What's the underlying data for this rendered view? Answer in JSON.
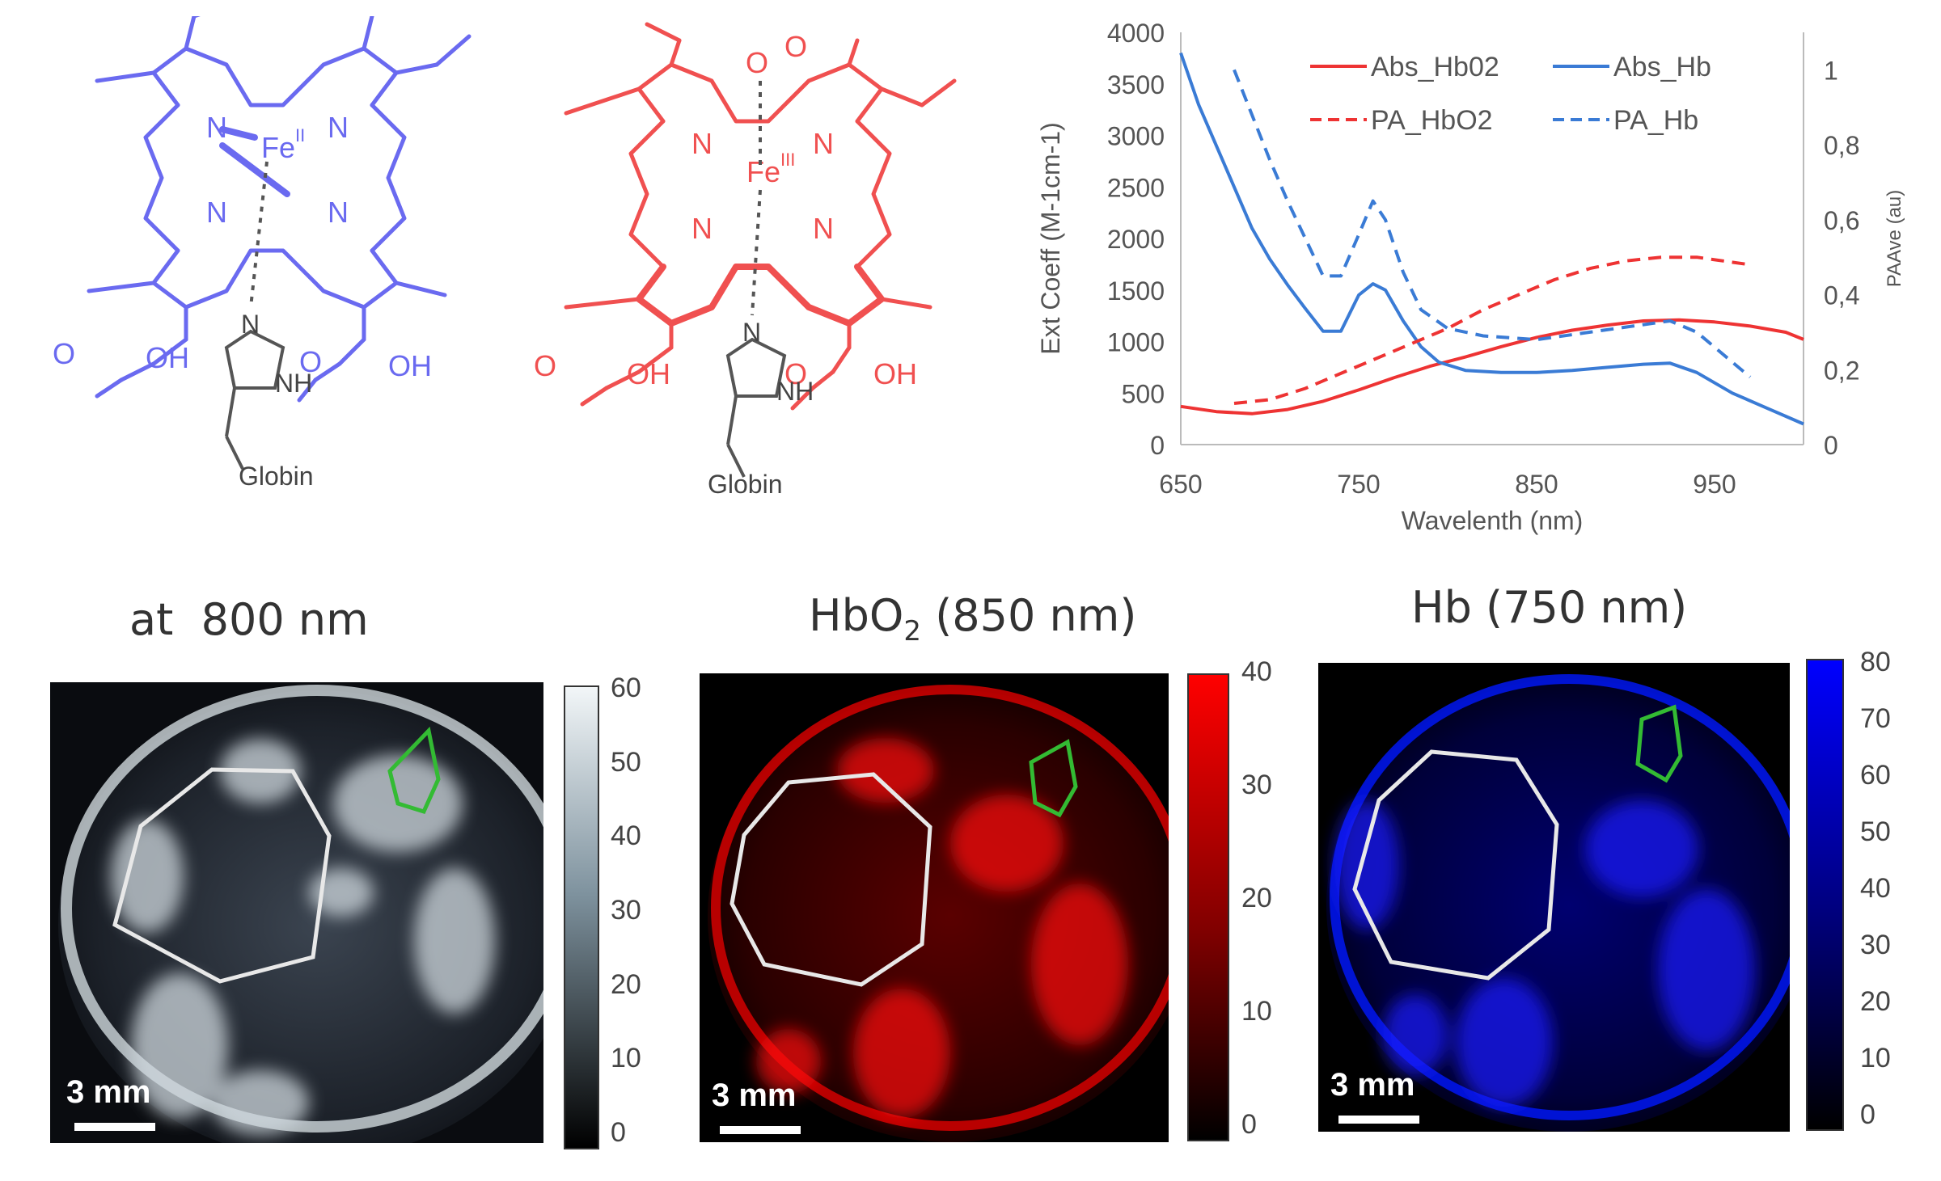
{
  "structures": {
    "left": {
      "fe_label": "Fe",
      "fe_sup": "II",
      "n_label": "N",
      "acid_label": "OH",
      "o_label": "O",
      "nh_label": "NH",
      "globin_label": "Globin",
      "color": "#6a6af0"
    },
    "right": {
      "fe_label": "Fe",
      "fe_sup": "III",
      "n_label": "N",
      "acid_label": "OH",
      "o_label": "O",
      "nh_label": "NH",
      "globin_label": "Globin",
      "color": "#f05050"
    }
  },
  "chart_data": {
    "type": "line",
    "xlabel": "Wavelenth (nm)",
    "ylabel": "Ext Coeff (M-1cm-1)",
    "y2label": "PAAve (au)",
    "xlim": [
      650,
      1000
    ],
    "ylim": [
      0,
      4000
    ],
    "y2lim": [
      0,
      1.1
    ],
    "x_ticks": [
      "650",
      "750",
      "850",
      "950"
    ],
    "y_ticks": [
      "0",
      "500",
      "1000",
      "1500",
      "2000",
      "2500",
      "3000",
      "3500",
      "4000"
    ],
    "y2_ticks": [
      "0",
      "0,2",
      "0,4",
      "0,6",
      "0,8",
      "1"
    ],
    "legend_position": "top-right",
    "series": [
      {
        "name": "Abs_Hb02",
        "axis": "left",
        "color": "#ee3333",
        "dash": false,
        "x": [
          650,
          670,
          690,
          710,
          730,
          750,
          770,
          790,
          810,
          830,
          850,
          870,
          890,
          910,
          930,
          950,
          970,
          990,
          1000
        ],
        "y": [
          370,
          320,
          300,
          340,
          420,
          530,
          650,
          760,
          850,
          950,
          1040,
          1110,
          1160,
          1200,
          1210,
          1190,
          1150,
          1090,
          1020
        ]
      },
      {
        "name": "Abs_Hb",
        "axis": "left",
        "color": "#3a7bd5",
        "dash": false,
        "x": [
          650,
          660,
          670,
          680,
          690,
          700,
          710,
          720,
          730,
          740,
          750,
          758,
          765,
          775,
          785,
          795,
          810,
          830,
          850,
          870,
          890,
          910,
          925,
          940,
          960,
          980,
          1000
        ],
        "y": [
          3800,
          3300,
          2900,
          2500,
          2100,
          1800,
          1550,
          1320,
          1100,
          1100,
          1450,
          1560,
          1500,
          1200,
          950,
          800,
          720,
          700,
          700,
          720,
          750,
          780,
          790,
          700,
          500,
          350,
          200
        ]
      },
      {
        "name": "PA_HbO2",
        "axis": "right",
        "color": "#ee3333",
        "dash": true,
        "x": [
          680,
          700,
          720,
          740,
          760,
          780,
          800,
          820,
          840,
          860,
          880,
          900,
          920,
          940,
          970
        ],
        "y": [
          0.11,
          0.12,
          0.15,
          0.19,
          0.23,
          0.27,
          0.31,
          0.36,
          0.4,
          0.44,
          0.47,
          0.49,
          0.5,
          0.5,
          0.48
        ]
      },
      {
        "name": "PA_Hb",
        "axis": "right",
        "color": "#3a7bd5",
        "dash": true,
        "x": [
          680,
          690,
          700,
          710,
          720,
          730,
          740,
          750,
          758,
          765,
          775,
          785,
          800,
          820,
          850,
          880,
          910,
          925,
          940,
          960,
          970
        ],
        "y": [
          1.0,
          0.88,
          0.76,
          0.65,
          0.55,
          0.45,
          0.45,
          0.56,
          0.65,
          0.6,
          0.46,
          0.36,
          0.31,
          0.29,
          0.28,
          0.3,
          0.32,
          0.33,
          0.3,
          0.22,
          0.18
        ]
      }
    ]
  },
  "panels": [
    {
      "title_prefix": "at",
      "title_main": "800 nm",
      "title_sub": "",
      "title_rest": "",
      "scale_bar": "3 mm",
      "colormap": "gray",
      "cb_top": "#f2f6f8",
      "cb_bottom": "#000000",
      "cb_ticks": [
        "60",
        "50",
        "40",
        "30",
        "20",
        "10",
        "0"
      ]
    },
    {
      "title_prefix": "",
      "title_main": "HbO",
      "title_sub": "2",
      "title_rest": " (850 nm)",
      "scale_bar": "3 mm",
      "colormap": "red",
      "cb_top": "#ff0000",
      "cb_bottom": "#000000",
      "cb_ticks": [
        "40",
        "30",
        "20",
        "10",
        "0"
      ]
    },
    {
      "title_prefix": "",
      "title_main": "Hb (750 nm)",
      "title_sub": "",
      "title_rest": "",
      "scale_bar": "3 mm",
      "colormap": "blue",
      "cb_top": "#0000ff",
      "cb_bottom": "#000000",
      "cb_ticks": [
        "80",
        "70",
        "60",
        "50",
        "40",
        "30",
        "20",
        "10",
        "0"
      ]
    }
  ]
}
